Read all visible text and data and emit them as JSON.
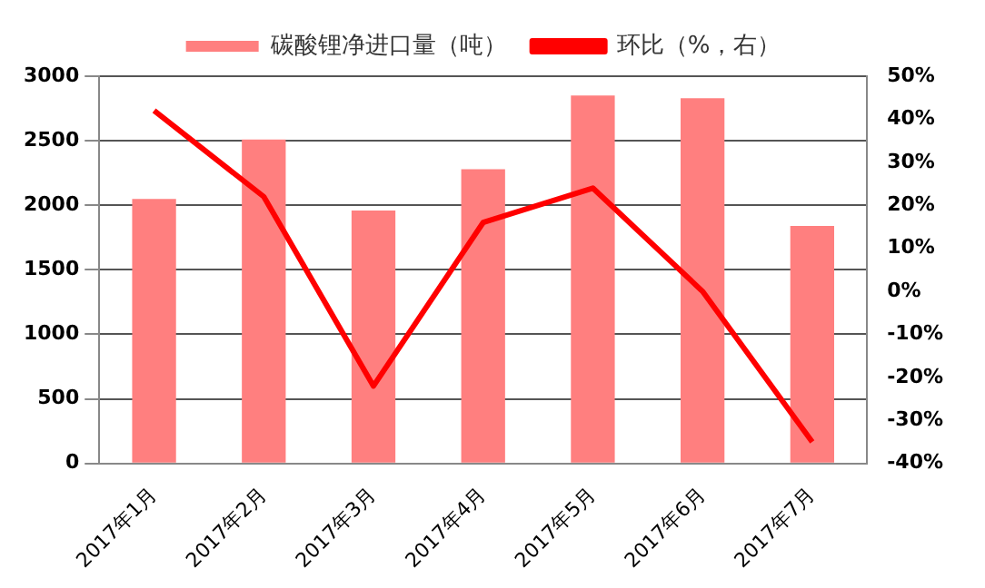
{
  "chart_data": {
    "type": "bar",
    "categories": [
      "2017年1月",
      "2017年2月",
      "2017年3月",
      "2017年4月",
      "2017年5月",
      "2017年6月",
      "2017年7月"
    ],
    "series": [
      {
        "name": "碳酸锂净进口量（吨）",
        "color": "#ff7f7f",
        "values": [
          2050,
          2510,
          1960,
          2280,
          2850,
          2830,
          1840
        ]
      },
      {
        "name": "环比（%，右）",
        "type": "line",
        "axis": "y2",
        "color": "#ff0000",
        "values": [
          42,
          22,
          -22,
          16,
          24,
          0,
          -35
        ]
      }
    ],
    "ylim": [
      0,
      3000
    ],
    "yticks": [
      0,
      500,
      1000,
      1500,
      2000,
      2500,
      3000
    ],
    "y2lim": [
      -40,
      50
    ],
    "y2ticks": [
      {
        "value": -40,
        "label": "-40%"
      },
      {
        "value": -30,
        "label": "-30%"
      },
      {
        "value": -20,
        "label": "-20%"
      },
      {
        "value": -10,
        "label": "-10%"
      },
      {
        "value": 0,
        "label": "0%"
      },
      {
        "value": 10,
        "label": "10%"
      },
      {
        "value": 20,
        "label": "20%"
      },
      {
        "value": 30,
        "label": "30%"
      },
      {
        "value": 40,
        "label": "40%"
      },
      {
        "value": 50,
        "label": "50%"
      }
    ],
    "grid": "y",
    "legend": "top",
    "marker": "none",
    "line_style": "solid"
  }
}
